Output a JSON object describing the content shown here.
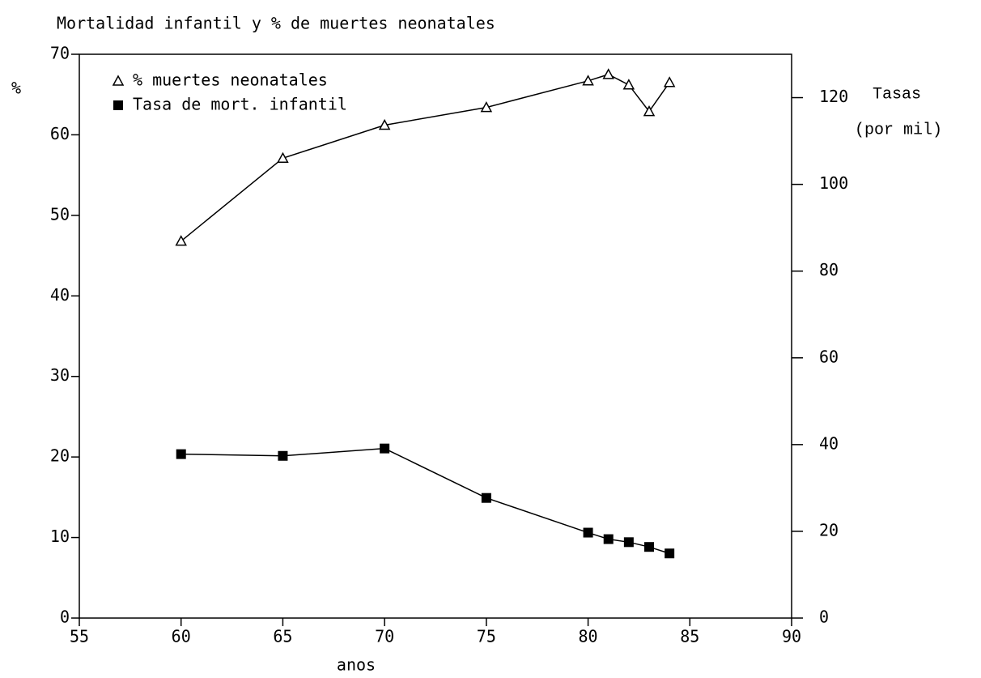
{
  "chart_data": {
    "type": "line",
    "title": "Mortalidad infantil y % de muertes neonatales",
    "xlabel": "anos",
    "ylabel": "%",
    "y2label": [
      "Tasas",
      "(por mil)"
    ],
    "x": [
      60,
      65,
      70,
      75,
      80,
      81,
      82,
      83,
      84
    ],
    "series": [
      {
        "name": "% muertes neonatales",
        "color": "#000000",
        "marker": "triangle",
        "axis": "y",
        "values": [
          46.8,
          57.1,
          61.2,
          63.4,
          66.7,
          67.5,
          66.2,
          62.9,
          66.5
        ]
      },
      {
        "name": "Tasa de mort. infantil",
        "color": "#000000",
        "marker": "square",
        "axis": "y2",
        "values": [
          37.8,
          37.4,
          39.1,
          27.7,
          19.7,
          18.2,
          17.5,
          16.4,
          14.9
        ]
      }
    ],
    "xlim": [
      55,
      90
    ],
    "xticks": [
      55,
      60,
      65,
      70,
      75,
      80,
      85,
      90
    ],
    "ylim": [
      0,
      70
    ],
    "yticks": [
      0,
      10,
      20,
      30,
      40,
      50,
      60,
      70
    ],
    "y2lim": [
      0,
      130
    ],
    "y2ticks": [
      0,
      20,
      40,
      60,
      80,
      100,
      120
    ],
    "grid": false,
    "legend": "upper left"
  }
}
